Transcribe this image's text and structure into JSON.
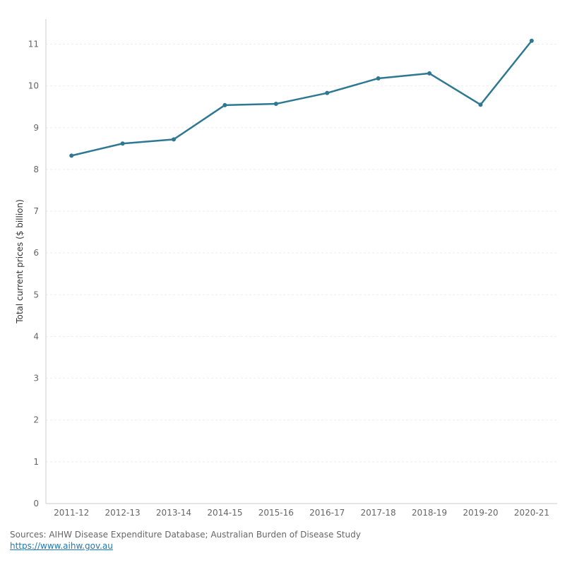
{
  "chart_data": {
    "type": "line",
    "ylabel": "Total current prices ($ billion)",
    "xlabel": "",
    "categories": [
      "2011-12",
      "2012-13",
      "2013-14",
      "2014-15",
      "2015-16",
      "2016-17",
      "2017-18",
      "2018-19",
      "2019-20",
      "2020-21"
    ],
    "series": [
      {
        "values": [
          8.33,
          8.62,
          8.72,
          9.54,
          9.57,
          9.83,
          10.18,
          10.3,
          9.55,
          11.08
        ]
      }
    ],
    "ylim": [
      0,
      11.6
    ],
    "yticks": [
      "0",
      "1",
      "2",
      "3",
      "4",
      "5",
      "6",
      "7",
      "8",
      "9",
      "10",
      "11"
    ],
    "grid": true,
    "line_color": "#2e7891"
  },
  "footer": {
    "sources": "Sources: AIHW Disease Expenditure Database; Australian Burden of Disease Study",
    "link": "https://www.aihw.gov.au"
  }
}
